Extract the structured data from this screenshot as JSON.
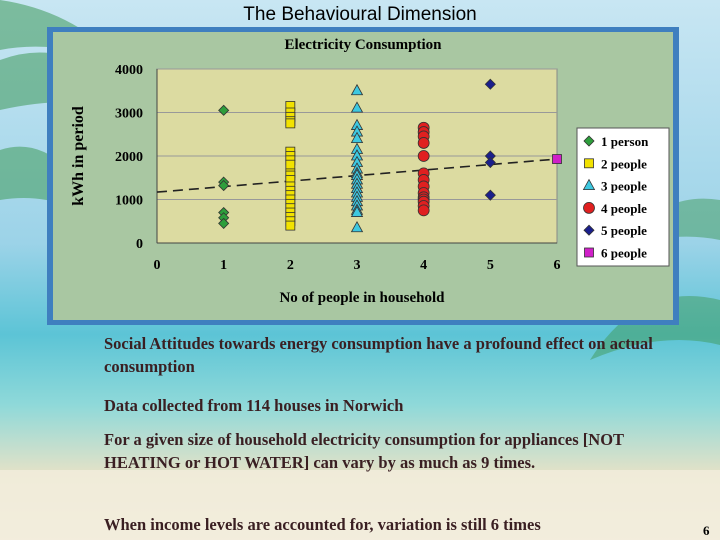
{
  "slide": {
    "title": "The Behavioural Dimension",
    "paragraphs": [
      "Social Attitudes towards energy consumption have a profound effect on actual consumption",
      "Data collected from 114 houses in Norwich",
      "For a given size of household electricity consumption for appliances [NOT HEATING or HOT WATER] can vary by as much as 9 times.",
      "When income levels are accounted for,  variation is still 6 times"
    ],
    "page_number": "6"
  },
  "colors": {
    "chart_frame": "#3f7fbf",
    "chart_bg": "#a9c7a2",
    "plot_bg": "#dcdba1",
    "text_body": "#3a1f22"
  },
  "chart_data": {
    "type": "scatter",
    "title": "Electricity Consumption",
    "xlabel": "No of people in household",
    "ylabel": "kWh in period",
    "xlim": [
      0,
      6
    ],
    "ylim": [
      0,
      4000
    ],
    "x_ticks": [
      "0",
      "1",
      "2",
      "3",
      "4",
      "5",
      "6"
    ],
    "y_ticks": [
      "0",
      "1000",
      "2000",
      "3000",
      "4000"
    ],
    "grid": "horizontal",
    "legend_position": "right",
    "series": [
      {
        "name": "1 person",
        "marker": "diamond",
        "color": "#2e9e3c",
        "points": [
          [
            1,
            3050
          ],
          [
            1,
            1400
          ],
          [
            1,
            1320
          ],
          [
            1,
            700
          ],
          [
            1,
            580
          ],
          [
            1,
            450
          ]
        ]
      },
      {
        "name": "2 people",
        "marker": "square",
        "color": "#f2e200",
        "points": [
          [
            2,
            3150
          ],
          [
            2,
            3000
          ],
          [
            2,
            2900
          ],
          [
            2,
            2800
          ],
          [
            2,
            2750
          ],
          [
            2,
            2100
          ],
          [
            2,
            2000
          ],
          [
            2,
            1900
          ],
          [
            2,
            1800
          ],
          [
            2,
            1600
          ],
          [
            2,
            1550
          ],
          [
            2,
            1450
          ],
          [
            2,
            1300
          ],
          [
            2,
            1200
          ],
          [
            2,
            1100
          ],
          [
            2,
            1000
          ],
          [
            2,
            900
          ],
          [
            2,
            800
          ],
          [
            2,
            700
          ],
          [
            2,
            600
          ],
          [
            2,
            500
          ],
          [
            2,
            400
          ]
        ]
      },
      {
        "name": "3 people",
        "marker": "triangle",
        "color": "#3ec8e0",
        "points": [
          [
            3,
            3500
          ],
          [
            3,
            3100
          ],
          [
            3,
            2700
          ],
          [
            3,
            2550
          ],
          [
            3,
            2400
          ],
          [
            3,
            2150
          ],
          [
            3,
            2000
          ],
          [
            3,
            1850
          ],
          [
            3,
            1700
          ],
          [
            3,
            1600
          ],
          [
            3,
            1550
          ],
          [
            3,
            1450
          ],
          [
            3,
            1350
          ],
          [
            3,
            1250
          ],
          [
            3,
            1150
          ],
          [
            3,
            1050
          ],
          [
            3,
            950
          ],
          [
            3,
            850
          ],
          [
            3,
            750
          ],
          [
            3,
            700
          ],
          [
            3,
            350
          ]
        ]
      },
      {
        "name": "4 people",
        "marker": "circle",
        "color": "#e02020",
        "points": [
          [
            4,
            2650
          ],
          [
            4,
            2550
          ],
          [
            4,
            2450
          ],
          [
            4,
            2300
          ],
          [
            4,
            2000
          ],
          [
            4,
            1600
          ],
          [
            4,
            1450
          ],
          [
            4,
            1300
          ],
          [
            4,
            1150
          ],
          [
            4,
            1050
          ],
          [
            4,
            1000
          ],
          [
            4,
            950
          ],
          [
            4,
            850
          ],
          [
            4,
            750
          ]
        ]
      },
      {
        "name": "5 people",
        "marker": "diamond",
        "color": "#1a1f8c",
        "points": [
          [
            5,
            3650
          ],
          [
            5,
            2000
          ],
          [
            5,
            1850
          ],
          [
            5,
            1100
          ]
        ]
      },
      {
        "name": "6 people",
        "marker": "square",
        "color": "#d020c8",
        "points": [
          [
            6,
            1930
          ]
        ]
      }
    ],
    "trendline": {
      "style": "dashed",
      "x": [
        0,
        6
      ],
      "y": [
        1170,
        1930
      ]
    }
  }
}
